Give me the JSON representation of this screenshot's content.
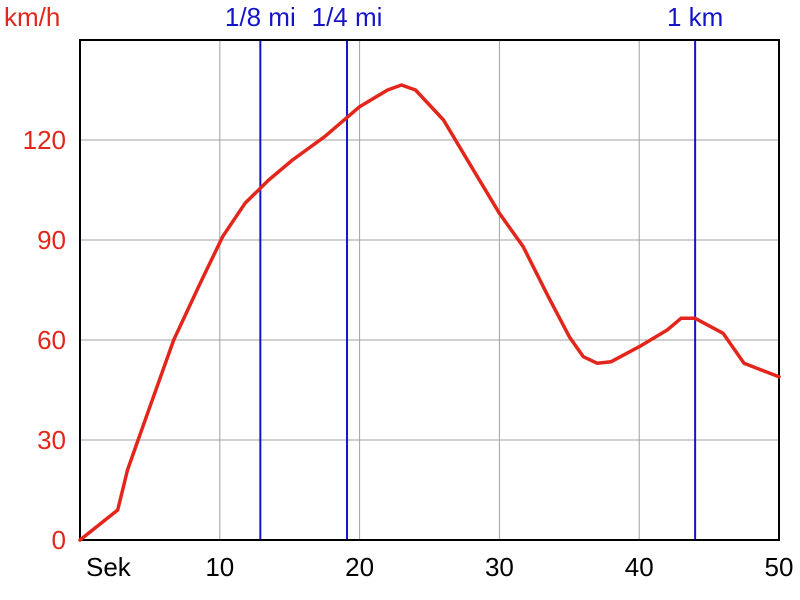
{
  "chart_data": {
    "type": "line",
    "ylabel": "km/h",
    "xlabel": "Sek",
    "xlim": [
      0,
      50
    ],
    "ylim": [
      0,
      150
    ],
    "x_ticks": [
      {
        "value": 10,
        "label": "10"
      },
      {
        "value": 20,
        "label": "20"
      },
      {
        "value": 30,
        "label": "30"
      },
      {
        "value": 40,
        "label": "40"
      },
      {
        "value": 50,
        "label": "50"
      }
    ],
    "y_ticks": [
      {
        "value": 0,
        "label": "0"
      },
      {
        "value": 30,
        "label": "30"
      },
      {
        "value": 60,
        "label": "60"
      },
      {
        "value": 90,
        "label": "90"
      },
      {
        "value": 120,
        "label": "120"
      }
    ],
    "grid": true,
    "colors": {
      "series": "#e3261b",
      "markers": "#1515c8",
      "grid": "#a0a0a0",
      "axis": "#000000"
    },
    "markers": [
      {
        "label": "1/8 mi",
        "x": 12.9
      },
      {
        "label": "1/4 mi",
        "x": 19.1
      },
      {
        "label": "1 km",
        "x": 44
      }
    ],
    "series": [
      {
        "x": [
          0,
          2.7,
          3.4,
          5,
          6.7,
          8.6,
          10.2,
          11.8,
          13.5,
          15.2,
          17.5,
          20,
          22,
          23,
          24,
          26,
          28,
          30,
          31.7,
          33.5,
          35,
          36,
          37,
          38,
          40,
          42,
          43,
          44,
          46,
          47.5,
          50
        ],
        "y": [
          0,
          9,
          21,
          40,
          60,
          77,
          91,
          101,
          108,
          114,
          121,
          130,
          135,
          136.5,
          135,
          126,
          112,
          98,
          88,
          73,
          61,
          55,
          53,
          53.5,
          58,
          63,
          66.5,
          66.5,
          62,
          53,
          49
        ]
      }
    ]
  }
}
